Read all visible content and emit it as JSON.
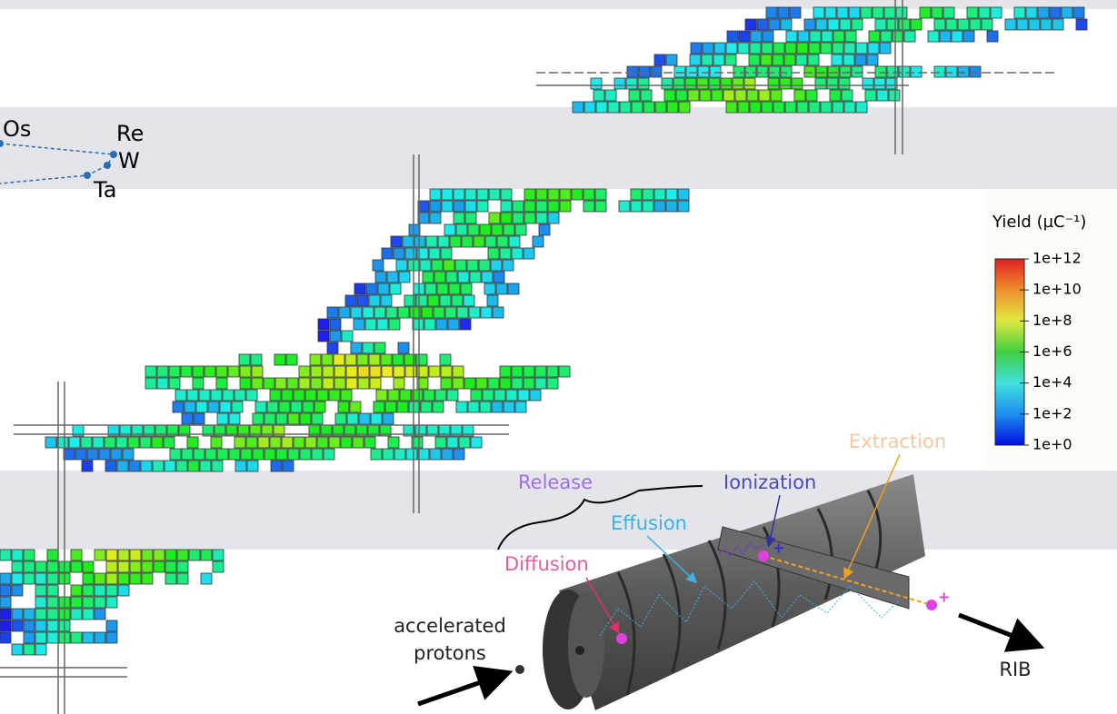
{
  "elements": [
    "Os",
    "Re",
    "W",
    "Ta"
  ],
  "colorbar": {
    "title": "Yield (µC⁻¹)",
    "scale": "log",
    "range": [
      1,
      1000000000000
    ],
    "ticks": [
      {
        "value": 1,
        "label": "1e+0"
      },
      {
        "value": 100,
        "label": "1e+2"
      },
      {
        "value": 10000,
        "label": "1e+4"
      },
      {
        "value": 1000000,
        "label": "1e+6"
      },
      {
        "value": 100000000,
        "label": "1e+8"
      },
      {
        "value": 10000000000,
        "label": "1e+10"
      },
      {
        "value": 1000000000000,
        "label": "1e+12"
      }
    ]
  },
  "process": {
    "release": "Release",
    "ionization": "Ionization",
    "extraction": "Extraction",
    "effusion": "Effusion",
    "diffusion": "Diffusion",
    "beam": [
      "accelerated",
      "protons"
    ],
    "output": "RIB"
  }
}
